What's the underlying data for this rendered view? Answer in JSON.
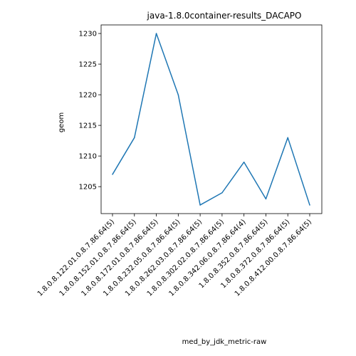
{
  "chart_data": {
    "type": "line",
    "title": "java-1.8.0container-results_DACAPO",
    "xlabel": "med_by_jdk_metric-raw",
    "ylabel": "geom",
    "categories": [
      "1.8.0.8.122.01.0.8.7.86.64(5)",
      "1.8.0.8.152.01.0.8.7.86.64(5)",
      "1.8.0.8.172.01.0.8.7.86.64(5)",
      "1.8.0.8.232.05.0.8.7.86.64(5)",
      "1.8.0.8.262.03.0.8.7.86.64(5)",
      "1.8.0.8.302.02.0.8.7.86.64(5)",
      "1.8.0.8.342.06.0.8.7.86.64(4)",
      "1.8.0.8.352.0.8.7.86.64(5)",
      "1.8.0.8.372.0.8.7.86.64(5)",
      "1.8.0.8.412.00.0.8.7.86.64(5)"
    ],
    "values": [
      1207,
      1213,
      1230,
      1220,
      1202,
      1204,
      1209,
      1203,
      1213,
      1202
    ],
    "yticks": [
      1205,
      1210,
      1215,
      1220,
      1225,
      1230
    ],
    "ylim": [
      1200.6,
      1231.4
    ],
    "grid": false,
    "line_color": "#1f77b4"
  }
}
